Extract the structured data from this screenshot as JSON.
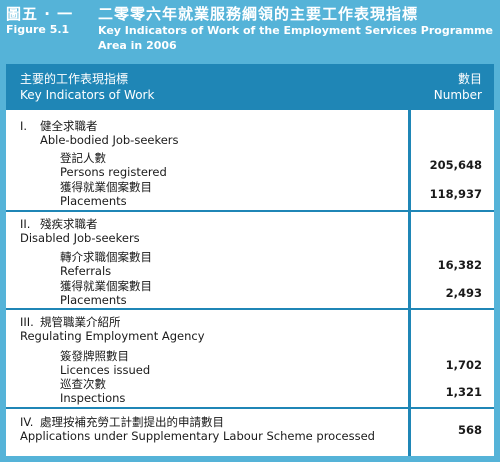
{
  "header": {
    "zh_label": "圖五 · 一",
    "zh_title": "二零零六年就業服務綱領的主要工作表現指標",
    "en_label": "Figure 5.1",
    "en_title": "Key Indicators of Work of the Employment Services Programme Area in 2006"
  },
  "table": {
    "col1_zh": "主要的工作表現指標",
    "col1_en": "Key Indicators of Work",
    "col2_zh": "數目",
    "col2_en": "Number"
  },
  "sections": [
    {
      "roman": "I.",
      "title_zh": "健全求職者",
      "title_en": "Able-bodied Job-seekers",
      "items": [
        {
          "zh": "登記人數",
          "en": "Persons registered",
          "value": "205,648"
        },
        {
          "zh": "獲得就業個案數目",
          "en": "Placements",
          "value": "118,937"
        }
      ]
    },
    {
      "roman": "II.",
      "title_zh": "殘疾求職者",
      "title_en": "Disabled Job-seekers",
      "items": [
        {
          "zh": "轉介求職個案數目",
          "en": "Referrals",
          "value": "16,382"
        },
        {
          "zh": "獲得就業個案數目",
          "en": "Placements",
          "value": "2,493"
        }
      ]
    },
    {
      "roman": "III.",
      "title_zh": "規管職業介紹所",
      "title_en": "Regulating Employment Agency",
      "items": [
        {
          "zh": "簽發牌照數目",
          "en": "Licences issued",
          "value": "1,702"
        },
        {
          "zh": "巡查次數",
          "en": "Inspections",
          "value": "1,321"
        }
      ]
    },
    {
      "roman": "IV.",
      "title_zh": "處理按補充勞工計劃提出的申請數目",
      "title_en": "Applications under Supplementary Labour Scheme processed",
      "value": "568"
    }
  ]
}
